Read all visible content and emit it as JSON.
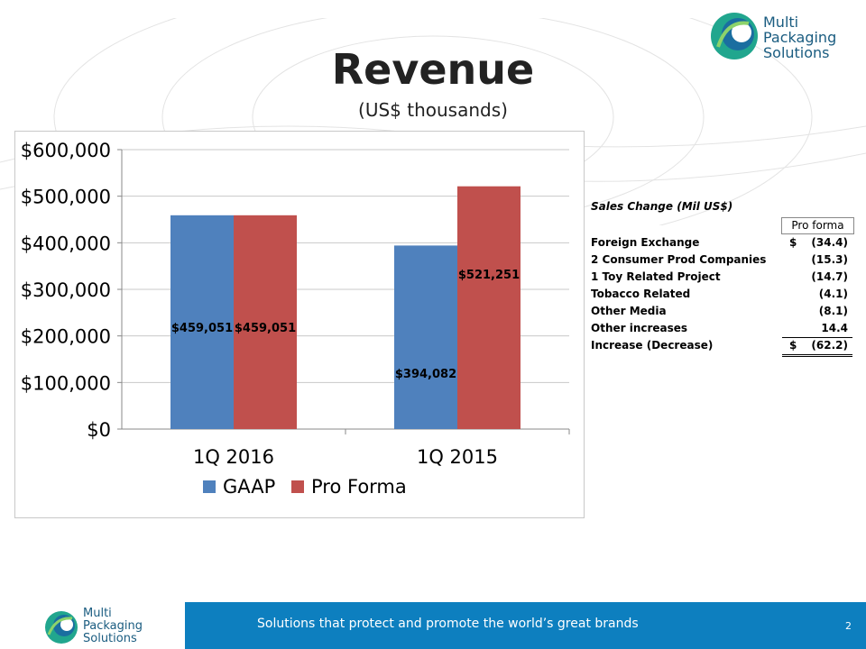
{
  "page": {
    "title": "Revenue",
    "subtitle": "(US$ thousands)",
    "logo_text": [
      "Multi",
      "Packaging",
      "Solutions"
    ],
    "tagline": "Solutions that protect and promote the world’s great brands",
    "page_number": "2",
    "colors": {
      "gaap": "#4f81bd",
      "pro_forma": "#c0504d",
      "footer_bar": "#0d7fbf",
      "logo_teal": "#1a5c80"
    }
  },
  "chart_data": {
    "type": "bar",
    "categories": [
      "1Q 2016",
      "1Q 2015"
    ],
    "series": [
      {
        "name": "GAAP",
        "values": [
          459051,
          394082
        ],
        "labels": [
          "$459,051",
          "$394,082"
        ],
        "color": "#4f81bd"
      },
      {
        "name": "Pro Forma",
        "values": [
          459051,
          521251
        ],
        "labels": [
          "$459,051",
          "$521,251"
        ],
        "color": "#c0504d"
      }
    ],
    "y_ticks": [
      "$0",
      "$100,000",
      "$200,000",
      "$300,000",
      "$400,000",
      "$500,000",
      "$600,000"
    ],
    "ylim": [
      0,
      600000
    ],
    "grid": true,
    "legend": "bottom"
  },
  "sales_change": {
    "title": "Sales Change (Mil US$)",
    "header": "Pro forma",
    "rows": [
      {
        "label": "Foreign Exchange",
        "currency": "$",
        "value": "(34.4)"
      },
      {
        "label": "2 Consumer Prod Companies",
        "currency": "",
        "value": "(15.3)"
      },
      {
        "label": "1 Toy Related Project",
        "currency": "",
        "value": "(14.7)"
      },
      {
        "label": "Tobacco Related",
        "currency": "",
        "value": "(4.1)"
      },
      {
        "label": "Other Media",
        "currency": "",
        "value": "(8.1)"
      },
      {
        "label": "Other increases",
        "currency": "",
        "value": "14.4"
      }
    ],
    "total": {
      "label": "Increase (Decrease)",
      "currency": "$",
      "value": "(62.2)"
    }
  }
}
